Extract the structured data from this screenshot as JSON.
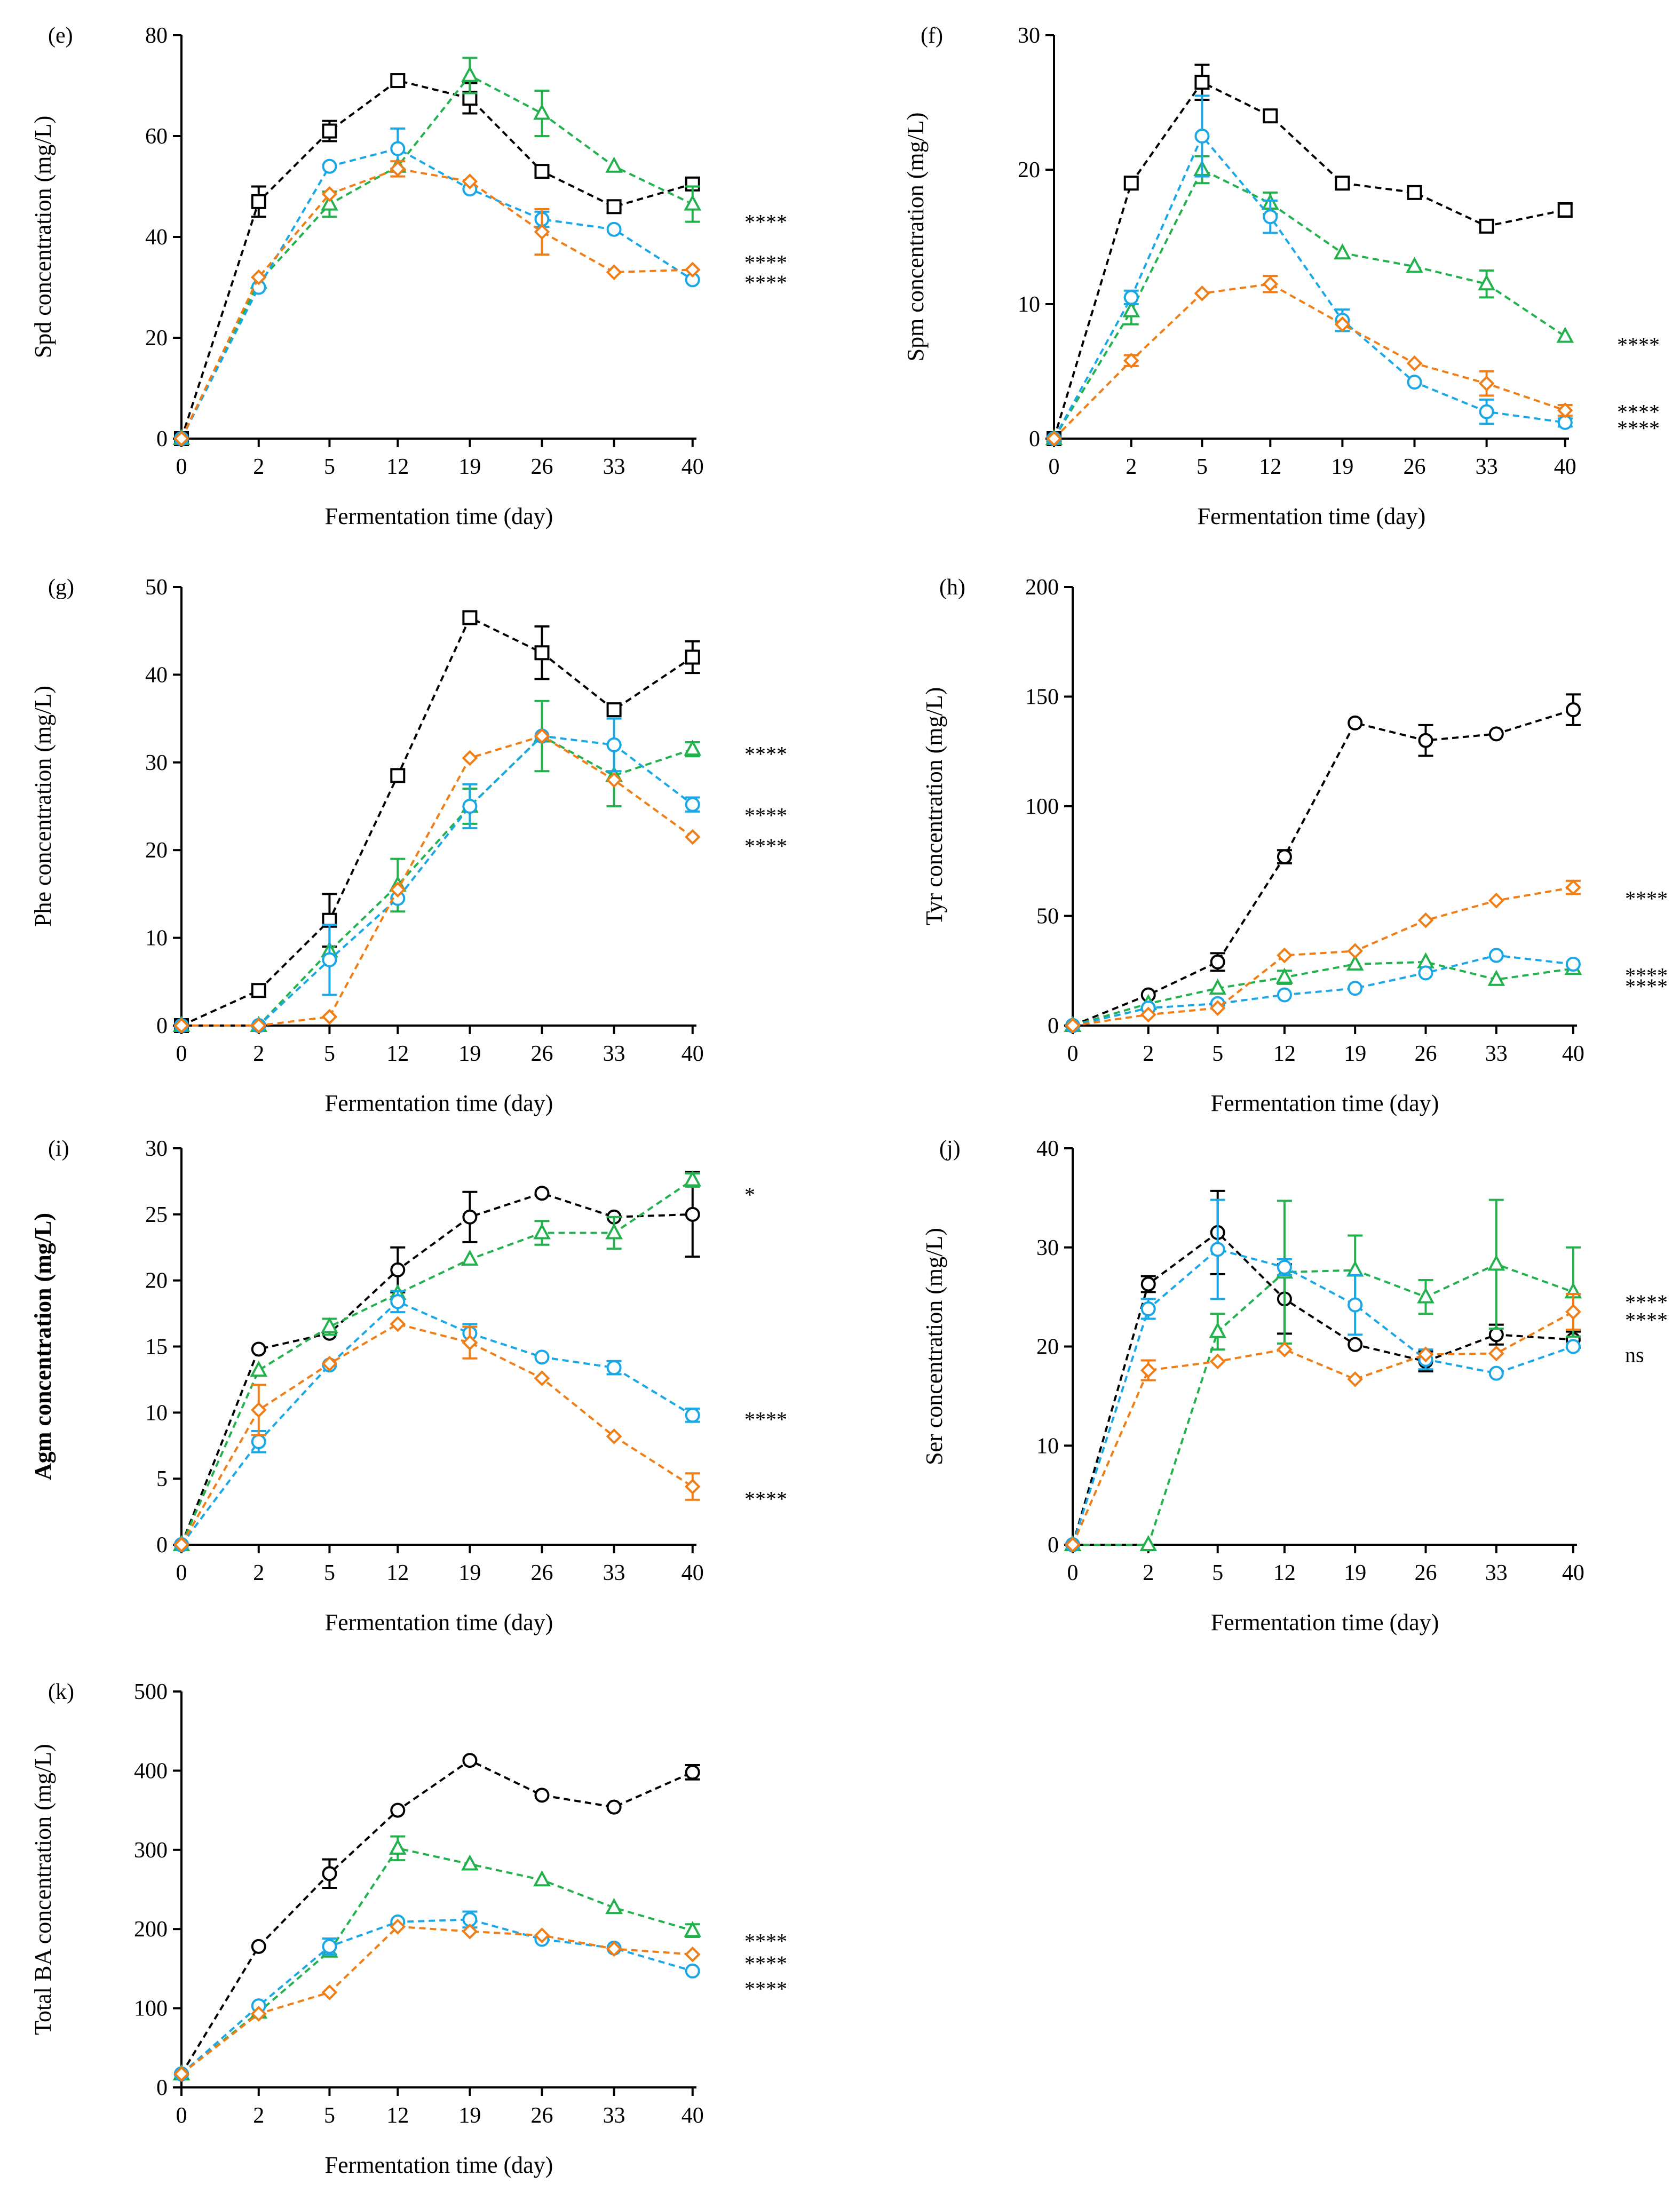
{
  "figure": {
    "style": {
      "axis_color": "#000000",
      "background": "#ffffff"
    }
  },
  "series_colors": {
    "black": "#000000",
    "green": "#22b14c",
    "blue": "#1aa7e8",
    "orange": "#f07d16"
  },
  "chart_data": [
    {
      "id": "e",
      "panel_label": "(e)",
      "type": "line",
      "title": "",
      "xlabel": "Fermentation time (day)",
      "ylabel": "Spd concentration (mg/L)",
      "ylabel_bold": false,
      "categories": [
        "0",
        "2",
        "5",
        "12",
        "19",
        "26",
        "33",
        "40"
      ],
      "ylim": [
        0,
        80
      ],
      "yticks": [
        0,
        20,
        40,
        60,
        80
      ],
      "series": [
        {
          "name": "black",
          "marker": "square",
          "values": [
            0,
            47,
            61,
            71,
            67.5,
            53,
            46,
            50.5
          ],
          "errors": [
            0,
            3,
            2,
            0,
            3,
            0,
            0,
            0
          ]
        },
        {
          "name": "green",
          "marker": "triangle",
          "values": [
            0,
            31,
            46.5,
            54,
            72,
            64.5,
            54,
            46.5
          ],
          "errors": [
            0,
            0,
            2.5,
            0,
            3.5,
            4.5,
            0,
            3.5
          ]
        },
        {
          "name": "blue",
          "marker": "circle",
          "values": [
            0,
            30,
            54,
            57.5,
            49.5,
            43.5,
            41.5,
            31.5
          ],
          "errors": [
            0,
            0,
            0,
            4,
            0,
            1.5,
            0,
            0
          ]
        },
        {
          "name": "orange",
          "marker": "diamond",
          "values": [
            0,
            32,
            48.5,
            53.5,
            51,
            41,
            33,
            33.5
          ],
          "errors": [
            0,
            0,
            0,
            1.5,
            0,
            4.5,
            0,
            0
          ]
        }
      ],
      "significance": [
        {
          "label": "****",
          "y": 43
        },
        {
          "label": "****",
          "y": 35
        },
        {
          "label": "****",
          "y": 31
        }
      ]
    },
    {
      "id": "f",
      "panel_label": "(f)",
      "type": "line",
      "title": "",
      "xlabel": "Fermentation time (day)",
      "ylabel": "Spm concentration (mg/L)",
      "ylabel_bold": false,
      "categories": [
        "0",
        "2",
        "5",
        "12",
        "19",
        "26",
        "33",
        "40"
      ],
      "ylim": [
        0,
        30
      ],
      "yticks": [
        0,
        10,
        20,
        30
      ],
      "series": [
        {
          "name": "black",
          "marker": "square",
          "values": [
            0,
            19,
            26.5,
            24,
            19,
            18.3,
            15.8,
            17
          ],
          "errors": [
            0,
            0,
            1.3,
            0,
            0,
            0,
            0,
            0.5
          ]
        },
        {
          "name": "green",
          "marker": "triangle",
          "values": [
            0,
            9.5,
            20,
            17.5,
            13.8,
            12.8,
            11.5,
            7.6
          ],
          "errors": [
            0,
            1,
            1,
            0.8,
            0,
            0,
            1,
            0
          ]
        },
        {
          "name": "blue",
          "marker": "circle",
          "values": [
            0,
            10.5,
            22.5,
            16.5,
            8.8,
            4.2,
            2,
            1.2
          ],
          "errors": [
            0,
            0.5,
            3,
            1.2,
            0.8,
            0,
            0.9,
            0.3
          ]
        },
        {
          "name": "orange",
          "marker": "diamond",
          "values": [
            0,
            5.8,
            10.8,
            11.5,
            8.5,
            5.6,
            4.1,
            2.1
          ],
          "errors": [
            0,
            0.4,
            0,
            0.6,
            0,
            0,
            0.9,
            0.4
          ]
        }
      ],
      "significance": [
        {
          "label": "****",
          "y": 7
        },
        {
          "label": "****",
          "y": 2
        },
        {
          "label": "****",
          "y": 0.8
        }
      ]
    },
    {
      "id": "g",
      "panel_label": "(g)",
      "type": "line",
      "title": "",
      "xlabel": "Fermentation time (day)",
      "ylabel": "Phe concentration (mg/L)",
      "ylabel_bold": false,
      "categories": [
        "0",
        "2",
        "5",
        "12",
        "19",
        "26",
        "33",
        "40"
      ],
      "ylim": [
        0,
        50
      ],
      "yticks": [
        0,
        10,
        20,
        30,
        40,
        50
      ],
      "series": [
        {
          "name": "black",
          "marker": "square",
          "values": [
            0,
            4,
            12,
            28.5,
            46.5,
            42.5,
            36,
            42
          ],
          "errors": [
            0,
            0,
            3,
            0,
            0,
            3,
            0,
            1.8
          ]
        },
        {
          "name": "green",
          "marker": "triangle",
          "values": [
            0,
            0,
            8.5,
            16,
            25,
            33,
            28.5,
            31.5
          ],
          "errors": [
            0,
            0,
            0,
            3,
            2,
            4,
            3.5,
            0.8
          ]
        },
        {
          "name": "blue",
          "marker": "circle",
          "values": [
            0,
            0,
            7.5,
            14.5,
            25,
            33,
            32,
            25.2
          ],
          "errors": [
            0,
            0,
            4,
            0,
            2.5,
            0,
            3,
            0.8
          ]
        },
        {
          "name": "orange",
          "marker": "diamond",
          "values": [
            0,
            0,
            1,
            15.5,
            30.5,
            33,
            28,
            21.5
          ],
          "errors": [
            0,
            0,
            0,
            0,
            0,
            0,
            0,
            0
          ]
        }
      ],
      "significance": [
        {
          "label": "****",
          "y": 31
        },
        {
          "label": "****",
          "y": 24
        },
        {
          "label": "****",
          "y": 20.5
        }
      ]
    },
    {
      "id": "h",
      "panel_label": "(h)",
      "type": "line",
      "title": "",
      "xlabel": "Fermentation time (day)",
      "ylabel": "Tyr concentration (mg/L)",
      "ylabel_bold": false,
      "categories": [
        "0",
        "2",
        "5",
        "12",
        "19",
        "26",
        "33",
        "40"
      ],
      "ylim": [
        0,
        200
      ],
      "yticks": [
        0,
        50,
        100,
        150,
        200
      ],
      "series": [
        {
          "name": "black",
          "marker": "circle",
          "values": [
            0,
            14,
            29,
            77,
            138,
            130,
            133,
            144
          ],
          "errors": [
            0,
            0,
            4,
            3,
            0,
            7,
            0,
            7
          ]
        },
        {
          "name": "green",
          "marker": "triangle",
          "values": [
            0,
            10,
            17,
            22,
            28,
            29,
            21,
            26
          ],
          "errors": [
            0,
            0,
            0,
            3,
            0,
            0,
            0,
            0
          ]
        },
        {
          "name": "blue",
          "marker": "circle",
          "values": [
            0,
            8,
            10,
            14,
            17,
            24,
            32,
            28
          ],
          "errors": [
            0,
            0,
            0,
            0,
            0,
            0,
            0,
            0
          ]
        },
        {
          "name": "orange",
          "marker": "diamond",
          "values": [
            0,
            5,
            8,
            32,
            34,
            48,
            57,
            63
          ],
          "errors": [
            0,
            0,
            0,
            0,
            0,
            0,
            0,
            3
          ]
        }
      ],
      "significance": [
        {
          "label": "****",
          "y": 58
        },
        {
          "label": "****",
          "y": 23
        },
        {
          "label": "****",
          "y": 18
        }
      ]
    },
    {
      "id": "i",
      "panel_label": "(i)",
      "type": "line",
      "title": "",
      "xlabel": "Fermentation time (day)",
      "ylabel": "Agm concentration (mg/L)",
      "ylabel_bold": true,
      "categories": [
        "0",
        "2",
        "5",
        "12",
        "19",
        "26",
        "33",
        "40"
      ],
      "ylim": [
        0,
        30
      ],
      "yticks": [
        0,
        5,
        10,
        15,
        20,
        25,
        30
      ],
      "series": [
        {
          "name": "black",
          "marker": "circle",
          "values": [
            0,
            14.8,
            16,
            20.8,
            24.8,
            26.6,
            24.8,
            25
          ],
          "errors": [
            0,
            0,
            0,
            1.7,
            1.9,
            0,
            0,
            3.2
          ]
        },
        {
          "name": "green",
          "marker": "triangle",
          "values": [
            0,
            13.2,
            16.5,
            19,
            21.6,
            23.6,
            23.6,
            27.6
          ],
          "errors": [
            0,
            0,
            0.6,
            0,
            0,
            0.9,
            1.2,
            0.5
          ]
        },
        {
          "name": "blue",
          "marker": "circle",
          "values": [
            0,
            7.8,
            13.6,
            18.4,
            16,
            14.2,
            13.4,
            9.8
          ],
          "errors": [
            0,
            0.8,
            0,
            0.8,
            0.7,
            0,
            0.5,
            0.5
          ]
        },
        {
          "name": "orange",
          "marker": "diamond",
          "values": [
            0,
            10.2,
            13.7,
            16.7,
            15.3,
            12.6,
            8.2,
            4.4
          ],
          "errors": [
            0,
            1.9,
            0,
            0,
            1.2,
            0,
            0,
            1
          ]
        }
      ],
      "significance": [
        {
          "label": "*",
          "y": 26.5
        },
        {
          "label": "****",
          "y": 9.5
        },
        {
          "label": "****",
          "y": 3.5
        }
      ]
    },
    {
      "id": "j",
      "panel_label": "(j)",
      "type": "line",
      "title": "",
      "xlabel": "Fermentation time (day)",
      "ylabel": "Ser concentration (mg/L)",
      "ylabel_bold": false,
      "categories": [
        "0",
        "2",
        "5",
        "12",
        "19",
        "26",
        "33",
        "40"
      ],
      "ylim": [
        0,
        40
      ],
      "yticks": [
        0,
        10,
        20,
        30,
        40
      ],
      "series": [
        {
          "name": "black",
          "marker": "circle",
          "values": [
            0,
            26.3,
            31.5,
            24.8,
            20.2,
            18.5,
            21.2,
            20.7
          ],
          "errors": [
            0,
            0.8,
            4.2,
            3.5,
            0,
            1,
            1,
            0.8
          ]
        },
        {
          "name": "green",
          "marker": "triangle",
          "values": [
            0,
            0,
            21.5,
            27.5,
            27.7,
            25,
            28.3,
            25.5
          ],
          "errors": [
            0,
            0,
            1.8,
            7.2,
            3.5,
            1.7,
            6.5,
            4.5
          ]
        },
        {
          "name": "blue",
          "marker": "circle",
          "values": [
            0,
            23.8,
            29.8,
            28,
            24.2,
            18.7,
            17.3,
            20
          ],
          "errors": [
            0,
            1,
            5,
            0.8,
            3,
            1,
            0,
            0
          ]
        },
        {
          "name": "orange",
          "marker": "diamond",
          "values": [
            0,
            17.6,
            18.5,
            19.7,
            16.7,
            19.2,
            19.3,
            23.5
          ],
          "errors": [
            0,
            1,
            0,
            0,
            0,
            0,
            0,
            1.8
          ]
        }
      ],
      "significance": [
        {
          "label": "****",
          "y": 24.5
        },
        {
          "label": "****",
          "y": 22.7
        },
        {
          "label": "ns",
          "y": 19.2
        }
      ]
    },
    {
      "id": "k",
      "panel_label": "(k)",
      "type": "line",
      "title": "",
      "xlabel": "Fermentation time (day)",
      "ylabel": "Total BA concentration (mg/L)",
      "ylabel_bold": false,
      "categories": [
        "0",
        "2",
        "5",
        "12",
        "19",
        "26",
        "33",
        "40"
      ],
      "ylim": [
        0,
        500
      ],
      "yticks": [
        0,
        100,
        200,
        300,
        400,
        500
      ],
      "series": [
        {
          "name": "black",
          "marker": "circle",
          "values": [
            17,
            178,
            270,
            350,
            413,
            369,
            354,
            398
          ],
          "errors": [
            0,
            0,
            18,
            0,
            0,
            0,
            0,
            9
          ]
        },
        {
          "name": "green",
          "marker": "triangle",
          "values": [
            17,
            95,
            172,
            302,
            282,
            262,
            227,
            198
          ],
          "errors": [
            0,
            0,
            0,
            15,
            0,
            0,
            0,
            8
          ]
        },
        {
          "name": "blue",
          "marker": "circle",
          "values": [
            17,
            103,
            178,
            209,
            212,
            187,
            176,
            147
          ],
          "errors": [
            0,
            0,
            10,
            0,
            10,
            0,
            0,
            0
          ]
        },
        {
          "name": "orange",
          "marker": "diamond",
          "values": [
            17,
            93,
            120,
            203,
            197,
            192,
            175,
            168
          ],
          "errors": [
            0,
            0,
            0,
            0,
            0,
            0,
            0,
            0
          ]
        }
      ],
      "significance": [
        {
          "label": "****",
          "y": 185
        },
        {
          "label": "****",
          "y": 157
        },
        {
          "label": "****",
          "y": 125
        }
      ]
    }
  ]
}
